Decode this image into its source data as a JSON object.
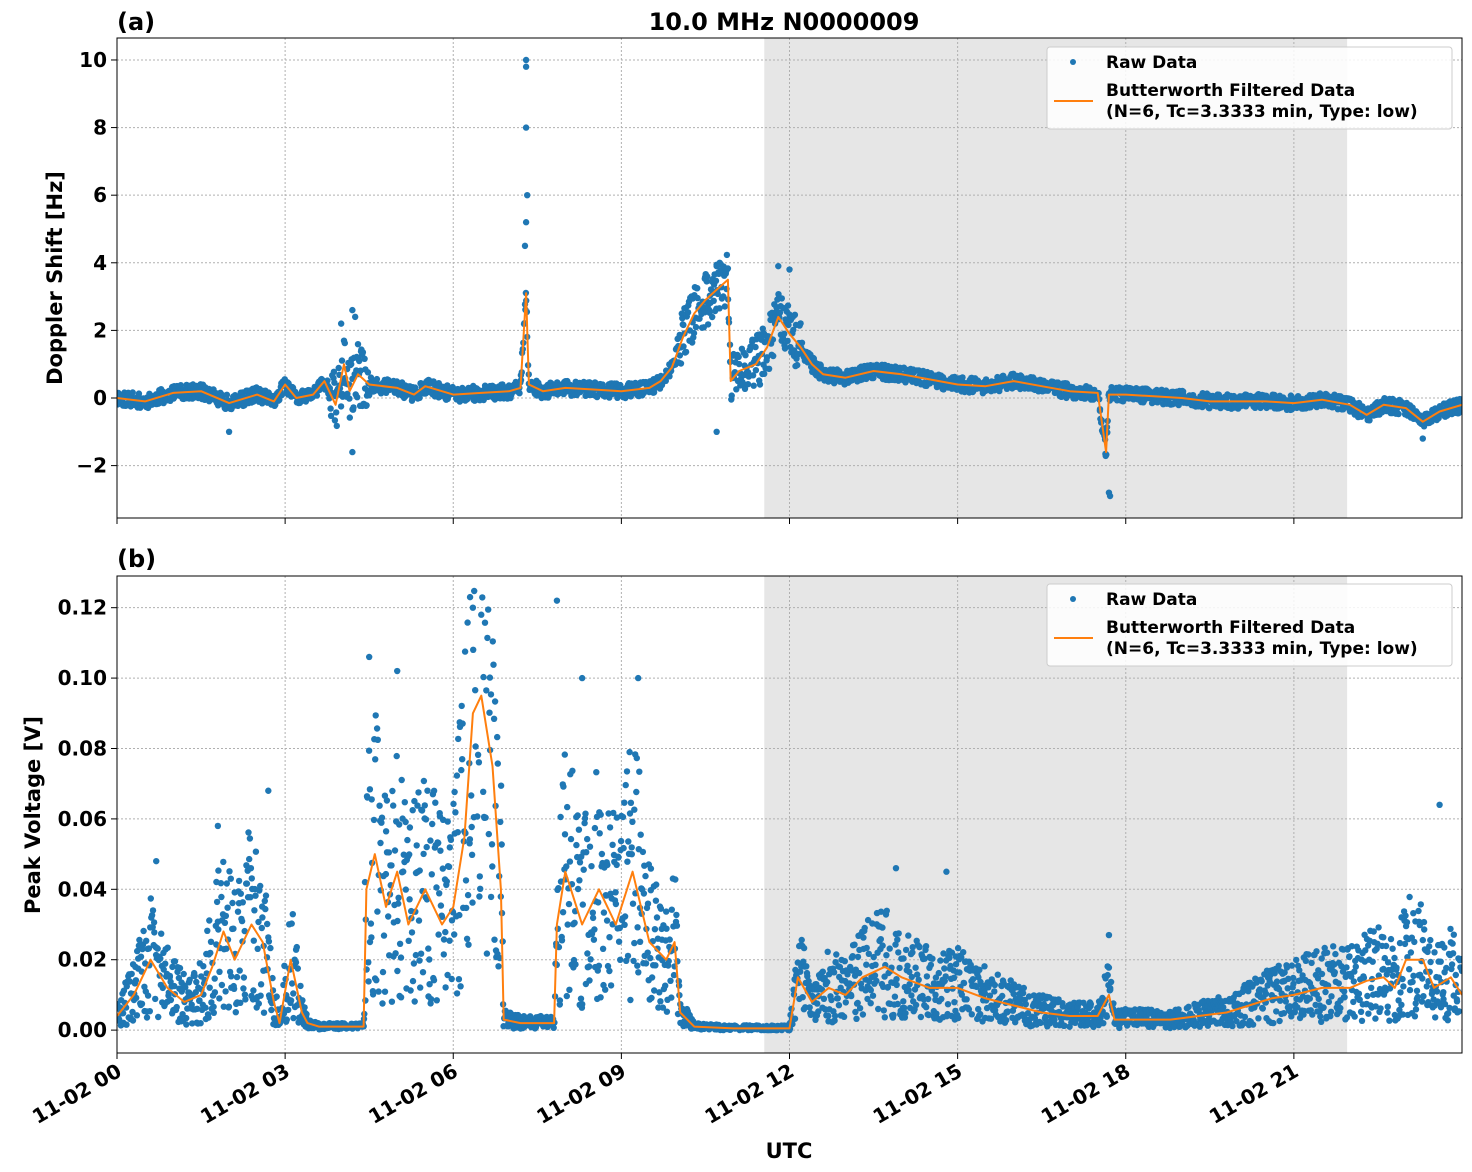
{
  "figure": {
    "title": "10.0 MHz N0000009",
    "xlabel": "UTC",
    "xtick_labels": [
      "11-02 00",
      "11-02 03",
      "11-02 06",
      "11-02 09",
      "11-02 12",
      "11-02 15",
      "11-02 18",
      "11-02 21"
    ],
    "colors": {
      "raw": "#1f77b4",
      "filtered": "#ff7f0e",
      "shade": "#e6e6e6",
      "grid": "#b0b0b0"
    }
  },
  "chart_data": [
    {
      "panel_label": "(a)",
      "type": "scatter",
      "ylabel": "Doppler Shift [Hz]",
      "xlim_hours": [
        0,
        24
      ],
      "ylim": [
        -3.55,
        10.65
      ],
      "yticks": [
        -2,
        0,
        2,
        4,
        6,
        8,
        10
      ],
      "ytick_labels": [
        "−2",
        "0",
        "2",
        "4",
        "6",
        "8",
        "10"
      ],
      "shaded_interval_hours": [
        11.55,
        21.95
      ],
      "grid": true,
      "legend": {
        "placement": "upper right",
        "raw_label": "Raw Data",
        "filtered_label_line1": "Butterworth Filtered Data",
        "filtered_label_line2": "(N=6, Tc=3.3333 min, Type: low)"
      },
      "series": [
        {
          "name": "Butterworth Filtered Data",
          "style": "line",
          "points": [
            [
              0,
              0.0
            ],
            [
              0.5,
              -0.1
            ],
            [
              1.0,
              0.15
            ],
            [
              1.5,
              0.2
            ],
            [
              2.0,
              -0.15
            ],
            [
              2.5,
              0.1
            ],
            [
              2.8,
              -0.1
            ],
            [
              3.0,
              0.4
            ],
            [
              3.2,
              0.0
            ],
            [
              3.5,
              0.1
            ],
            [
              3.7,
              0.5
            ],
            [
              3.9,
              -0.2
            ],
            [
              4.05,
              1.0
            ],
            [
              4.15,
              0.2
            ],
            [
              4.3,
              0.7
            ],
            [
              4.5,
              0.4
            ],
            [
              5.0,
              0.3
            ],
            [
              5.3,
              0.1
            ],
            [
              5.5,
              0.35
            ],
            [
              6.0,
              0.1
            ],
            [
              6.5,
              0.15
            ],
            [
              7.0,
              0.2
            ],
            [
              7.2,
              0.3
            ],
            [
              7.3,
              3.1
            ],
            [
              7.35,
              0.4
            ],
            [
              7.6,
              0.2
            ],
            [
              8.0,
              0.3
            ],
            [
              8.5,
              0.25
            ],
            [
              9.0,
              0.2
            ],
            [
              9.5,
              0.3
            ],
            [
              9.7,
              0.5
            ],
            [
              9.9,
              0.9
            ],
            [
              10.1,
              1.8
            ],
            [
              10.3,
              2.5
            ],
            [
              10.5,
              2.9
            ],
            [
              10.7,
              3.2
            ],
            [
              10.9,
              3.5
            ],
            [
              10.95,
              0.5
            ],
            [
              11.1,
              0.8
            ],
            [
              11.4,
              1.0
            ],
            [
              11.6,
              1.5
            ],
            [
              11.8,
              2.4
            ],
            [
              12.0,
              1.9
            ],
            [
              12.2,
              1.5
            ],
            [
              12.4,
              1.0
            ],
            [
              12.6,
              0.7
            ],
            [
              13.0,
              0.6
            ],
            [
              13.5,
              0.8
            ],
            [
              14.0,
              0.7
            ],
            [
              14.5,
              0.55
            ],
            [
              15.0,
              0.4
            ],
            [
              15.5,
              0.35
            ],
            [
              16.0,
              0.5
            ],
            [
              16.5,
              0.35
            ],
            [
              17.0,
              0.2
            ],
            [
              17.5,
              0.15
            ],
            [
              17.65,
              -1.6
            ],
            [
              17.7,
              0.1
            ],
            [
              18.0,
              0.1
            ],
            [
              18.5,
              0.05
            ],
            [
              19.0,
              0.0
            ],
            [
              19.5,
              -0.1
            ],
            [
              20.0,
              -0.1
            ],
            [
              20.5,
              -0.1
            ],
            [
              21.0,
              -0.15
            ],
            [
              21.5,
              -0.05
            ],
            [
              22.0,
              -0.2
            ],
            [
              22.3,
              -0.5
            ],
            [
              22.6,
              -0.2
            ],
            [
              23.0,
              -0.3
            ],
            [
              23.3,
              -0.7
            ],
            [
              23.6,
              -0.4
            ],
            [
              24.0,
              -0.2
            ]
          ]
        },
        {
          "name": "Raw Data",
          "style": "markers",
          "notable_points": [
            [
              7.3,
              10.0
            ],
            [
              7.3,
              9.8
            ],
            [
              7.3,
              8.0
            ],
            [
              7.32,
              6.0
            ],
            [
              7.3,
              5.2
            ],
            [
              7.28,
              4.5
            ],
            [
              4.2,
              2.6
            ],
            [
              4.25,
              2.4
            ],
            [
              4.0,
              2.2
            ],
            [
              10.7,
              3.9
            ],
            [
              11.8,
              3.9
            ],
            [
              12.0,
              3.8
            ],
            [
              17.7,
              -2.8
            ],
            [
              17.72,
              -2.9
            ],
            [
              4.2,
              -1.6
            ],
            [
              23.3,
              -1.2
            ],
            [
              2.0,
              -1.0
            ],
            [
              10.7,
              -1.0
            ]
          ]
        }
      ]
    },
    {
      "panel_label": "(b)",
      "type": "scatter",
      "ylabel": "Peak Voltage [V]",
      "xlim_hours": [
        0,
        24
      ],
      "ylim": [
        -0.0065,
        0.129
      ],
      "yticks": [
        0.0,
        0.02,
        0.04,
        0.06,
        0.08,
        0.1,
        0.12
      ],
      "ytick_labels": [
        "0.00",
        "0.02",
        "0.04",
        "0.06",
        "0.08",
        "0.10",
        "0.12"
      ],
      "shaded_interval_hours": [
        11.55,
        21.95
      ],
      "grid": true,
      "legend": {
        "placement": "upper right",
        "raw_label": "Raw Data",
        "filtered_label_line1": "Butterworth Filtered Data",
        "filtered_label_line2": "(N=6, Tc=3.3333 min, Type: low)"
      },
      "series": [
        {
          "name": "Butterworth Filtered Data",
          "style": "line",
          "points": [
            [
              0,
              0.004
            ],
            [
              0.3,
              0.01
            ],
            [
              0.6,
              0.02
            ],
            [
              0.9,
              0.012
            ],
            [
              1.2,
              0.008
            ],
            [
              1.5,
              0.01
            ],
            [
              1.7,
              0.018
            ],
            [
              1.9,
              0.028
            ],
            [
              2.1,
              0.02
            ],
            [
              2.4,
              0.03
            ],
            [
              2.6,
              0.025
            ],
            [
              2.8,
              0.008
            ],
            [
              2.9,
              0.002
            ],
            [
              3.1,
              0.02
            ],
            [
              3.3,
              0.005
            ],
            [
              3.4,
              0.002
            ],
            [
              3.6,
              0.001
            ],
            [
              4.0,
              0.001
            ],
            [
              4.4,
              0.001
            ],
            [
              4.45,
              0.04
            ],
            [
              4.6,
              0.05
            ],
            [
              4.8,
              0.035
            ],
            [
              5.0,
              0.045
            ],
            [
              5.2,
              0.03
            ],
            [
              5.5,
              0.04
            ],
            [
              5.8,
              0.03
            ],
            [
              6.0,
              0.035
            ],
            [
              6.2,
              0.055
            ],
            [
              6.35,
              0.09
            ],
            [
              6.5,
              0.095
            ],
            [
              6.7,
              0.075
            ],
            [
              6.85,
              0.04
            ],
            [
              6.9,
              0.003
            ],
            [
              7.2,
              0.002
            ],
            [
              7.5,
              0.002
            ],
            [
              7.8,
              0.002
            ],
            [
              7.85,
              0.03
            ],
            [
              8.0,
              0.045
            ],
            [
              8.3,
              0.03
            ],
            [
              8.6,
              0.04
            ],
            [
              8.9,
              0.03
            ],
            [
              9.2,
              0.045
            ],
            [
              9.5,
              0.025
            ],
            [
              9.8,
              0.02
            ],
            [
              9.95,
              0.025
            ],
            [
              10.05,
              0.005
            ],
            [
              10.3,
              0.001
            ],
            [
              11.0,
              0.0005
            ],
            [
              11.5,
              0.0005
            ],
            [
              12.0,
              0.0005
            ],
            [
              12.15,
              0.015
            ],
            [
              12.4,
              0.008
            ],
            [
              12.7,
              0.012
            ],
            [
              13.0,
              0.01
            ],
            [
              13.3,
              0.015
            ],
            [
              13.7,
              0.018
            ],
            [
              14.0,
              0.015
            ],
            [
              14.5,
              0.012
            ],
            [
              15.0,
              0.012
            ],
            [
              15.5,
              0.009
            ],
            [
              16.0,
              0.007
            ],
            [
              16.5,
              0.005
            ],
            [
              17.0,
              0.004
            ],
            [
              17.5,
              0.004
            ],
            [
              17.7,
              0.01
            ],
            [
              17.8,
              0.003
            ],
            [
              18.2,
              0.003
            ],
            [
              18.8,
              0.003
            ],
            [
              19.3,
              0.004
            ],
            [
              19.8,
              0.005
            ],
            [
              20.2,
              0.007
            ],
            [
              20.6,
              0.009
            ],
            [
              21.0,
              0.01
            ],
            [
              21.5,
              0.012
            ],
            [
              22.0,
              0.012
            ],
            [
              22.3,
              0.014
            ],
            [
              22.6,
              0.015
            ],
            [
              22.8,
              0.012
            ],
            [
              23.0,
              0.02
            ],
            [
              23.3,
              0.02
            ],
            [
              23.5,
              0.012
            ],
            [
              23.8,
              0.015
            ],
            [
              24.0,
              0.01
            ]
          ]
        },
        {
          "name": "Raw Data",
          "style": "markers",
          "notable_points": [
            [
              6.3,
              0.123
            ],
            [
              6.35,
              0.12
            ],
            [
              7.85,
              0.122
            ],
            [
              6.5,
              0.118
            ],
            [
              4.5,
              0.106
            ],
            [
              5.0,
              0.102
            ],
            [
              9.3,
              0.1
            ],
            [
              8.3,
              0.1
            ],
            [
              2.7,
              0.068
            ],
            [
              0.7,
              0.048
            ],
            [
              1.8,
              0.058
            ],
            [
              23.6,
              0.064
            ],
            [
              13.9,
              0.046
            ],
            [
              14.8,
              0.045
            ],
            [
              17.7,
              0.027
            ]
          ]
        }
      ]
    }
  ]
}
